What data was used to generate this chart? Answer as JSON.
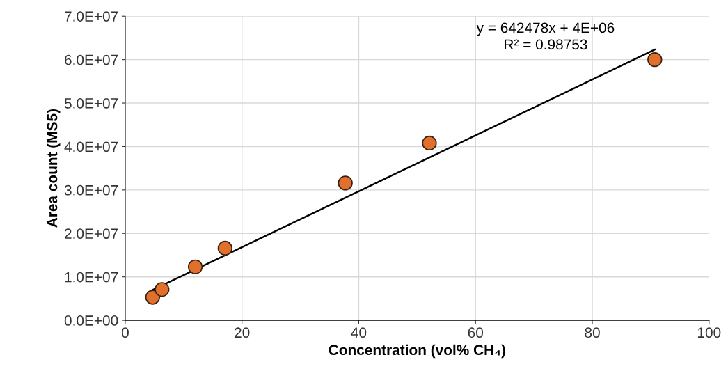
{
  "chart_data": {
    "type": "scatter",
    "xlabel": "Concentration (vol% CH₄)",
    "ylabel": "Area count (MS5)",
    "xlim": [
      0,
      100
    ],
    "xticks": [
      0,
      20,
      40,
      60,
      80,
      100
    ],
    "ylim": [
      0,
      70000000
    ],
    "yticks": [
      {
        "value": 0,
        "label": "0.0E+00"
      },
      {
        "value": 10000000,
        "label": "1.0E+07"
      },
      {
        "value": 20000000,
        "label": "2.0E+07"
      },
      {
        "value": 30000000,
        "label": "3.0E+07"
      },
      {
        "value": 40000000,
        "label": "4.0E+07"
      },
      {
        "value": 50000000,
        "label": "5.0E+07"
      },
      {
        "value": 60000000,
        "label": "6.0E+07"
      },
      {
        "value": 70000000,
        "label": "7.0E+07"
      }
    ],
    "grid": true,
    "series": [
      {
        "marker": "circle",
        "color": "#e0702c",
        "x": [
          4.7,
          6.3,
          12.0,
          17.1,
          37.7,
          52.1,
          90.7
        ],
        "values": [
          5300000,
          7100000,
          12300000,
          16600000,
          31600000,
          40800000,
          60000000
        ]
      },
      {
        "type": "line",
        "marker": "none",
        "color": "#000000",
        "x": [
          4.7,
          90.7
        ],
        "values": [
          7000000,
          62300000
        ],
        "line_style": "solid"
      }
    ],
    "annotations": [
      "y = 642478x + 4E+06\nR² = 0.98753"
    ]
  }
}
